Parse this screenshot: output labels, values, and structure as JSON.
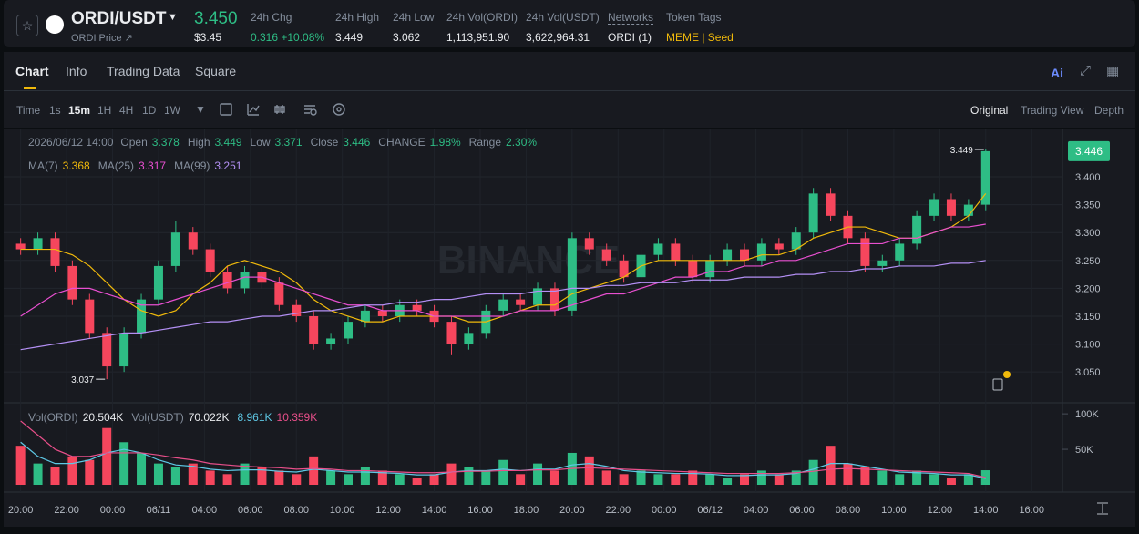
{
  "header": {
    "pair": "ORDI/USDT",
    "sub": "ORDI Price ↗",
    "price": "3.450",
    "price_usd": "$3.45",
    "stats": [
      {
        "label": "24h Chg",
        "value": "0.316 +10.08%"
      },
      {
        "label": "24h High",
        "value": "3.449"
      },
      {
        "label": "24h Low",
        "value": "3.062"
      },
      {
        "label": "24h Vol(ORDI)",
        "value": "1,113,951.90"
      },
      {
        "label": "24h Vol(USDT)",
        "value": "3,622,964.31"
      },
      {
        "label": "Networks",
        "value": "ORDI (1)"
      }
    ],
    "tags_label": "Token Tags",
    "tags": [
      "MEME",
      "Seed"
    ]
  },
  "tabs": [
    "Chart",
    "Info",
    "Trading Data",
    "Square"
  ],
  "toolbar": {
    "intervals": [
      "Time",
      "1s",
      "15m",
      "1H",
      "4H",
      "1D",
      "1W"
    ],
    "views": [
      "Original",
      "Trading View",
      "Depth"
    ],
    "ai": "Ai"
  },
  "info": {
    "date": "2026/06/12 14:00",
    "fields": [
      {
        "label": "Open",
        "value": "3.378"
      },
      {
        "label": "High",
        "value": "3.449"
      },
      {
        "label": "Low",
        "value": "3.371"
      },
      {
        "label": "Close",
        "value": "3.446"
      },
      {
        "label": "CHANGE",
        "value": "1.98%"
      },
      {
        "label": "Range",
        "value": "2.30%"
      }
    ]
  },
  "chart_data": {
    "type": "candlestick",
    "watermark": "BINANCE",
    "xlim": [
      -0.7,
      45.3
    ],
    "xticks": [
      {
        "value": 0,
        "label": "20:00"
      },
      {
        "value": 2,
        "label": "22:00"
      },
      {
        "value": 4,
        "label": "00:00"
      },
      {
        "value": 6,
        "label": "06/11"
      },
      {
        "value": 8,
        "label": "04:00"
      },
      {
        "value": 10,
        "label": "06:00"
      },
      {
        "value": 12,
        "label": "08:00"
      },
      {
        "value": 14,
        "label": "10:00"
      },
      {
        "value": 16,
        "label": "12:00"
      },
      {
        "value": 18,
        "label": "14:00"
      },
      {
        "value": 20,
        "label": "16:00"
      },
      {
        "value": 22,
        "label": "18:00"
      },
      {
        "value": 24,
        "label": "20:00"
      },
      {
        "value": 26,
        "label": "22:00"
      },
      {
        "value": 28,
        "label": "00:00"
      },
      {
        "value": 30,
        "label": "06/12"
      },
      {
        "value": 32,
        "label": "04:00"
      },
      {
        "value": 34,
        "label": "06:00"
      },
      {
        "value": 36,
        "label": "08:00"
      },
      {
        "value": 38,
        "label": "10:00"
      },
      {
        "value": 40,
        "label": "12:00"
      },
      {
        "value": 42,
        "label": "14:00"
      },
      {
        "value": 44,
        "label": "16:00"
      }
    ],
    "ylim": [
      2.998,
      3.485
    ],
    "yticks": [
      {
        "value": 3.05,
        "label": "3.050"
      },
      {
        "value": 3.1,
        "label": "3.100"
      },
      {
        "value": 3.15,
        "label": "3.150"
      },
      {
        "value": 3.2,
        "label": "3.200"
      },
      {
        "value": 3.25,
        "label": "3.250"
      },
      {
        "value": 3.3,
        "label": "3.300"
      },
      {
        "value": 3.35,
        "label": "3.350"
      },
      {
        "value": 3.4,
        "label": "3.400"
      }
    ],
    "up_color": "#2ebd85",
    "down_color": "#f6465d",
    "x": [
      0,
      0.75,
      1.5,
      2.25,
      3,
      3.75,
      4.5,
      5.25,
      6,
      6.75,
      7.5,
      8.25,
      9,
      9.75,
      10.5,
      11.25,
      12,
      12.75,
      13.5,
      14.25,
      15,
      15.75,
      16.5,
      17.25,
      18,
      18.75,
      19.5,
      20.25,
      21,
      21.75,
      22.5,
      23.25,
      24,
      24.75,
      25.5,
      26.25,
      27,
      27.75,
      28.5,
      29.25,
      30,
      30.75,
      31.5,
      32.25,
      33,
      33.75,
      34.5,
      35.25,
      36,
      36.75,
      37.5,
      38.25,
      39,
      39.75,
      40.5,
      41.25,
      42
    ],
    "open": [
      3.28,
      3.27,
      3.29,
      3.24,
      3.18,
      3.12,
      3.06,
      3.12,
      3.18,
      3.24,
      3.3,
      3.27,
      3.23,
      3.2,
      3.23,
      3.21,
      3.17,
      3.15,
      3.1,
      3.11,
      3.14,
      3.16,
      3.15,
      3.17,
      3.16,
      3.14,
      3.1,
      3.12,
      3.16,
      3.18,
      3.17,
      3.2,
      3.16,
      3.29,
      3.27,
      3.25,
      3.22,
      3.26,
      3.28,
      3.25,
      3.22,
      3.25,
      3.27,
      3.25,
      3.28,
      3.27,
      3.3,
      3.37,
      3.33,
      3.29,
      3.24,
      3.25,
      3.28,
      3.33,
      3.36,
      3.33,
      3.35
    ],
    "high": [
      3.29,
      3.3,
      3.3,
      3.25,
      3.19,
      3.13,
      3.13,
      3.19,
      3.25,
      3.32,
      3.31,
      3.28,
      3.24,
      3.24,
      3.24,
      3.22,
      3.18,
      3.16,
      3.12,
      3.15,
      3.17,
      3.17,
      3.18,
      3.18,
      3.17,
      3.15,
      3.13,
      3.17,
      3.19,
      3.19,
      3.21,
      3.21,
      3.3,
      3.3,
      3.28,
      3.26,
      3.27,
      3.29,
      3.29,
      3.26,
      3.26,
      3.28,
      3.28,
      3.29,
      3.29,
      3.31,
      3.38,
      3.38,
      3.34,
      3.3,
      3.26,
      3.29,
      3.34,
      3.37,
      3.37,
      3.36,
      3.449
    ],
    "low": [
      3.26,
      3.26,
      3.23,
      3.17,
      3.11,
      3.037,
      3.05,
      3.11,
      3.17,
      3.23,
      3.26,
      3.22,
      3.19,
      3.19,
      3.2,
      3.16,
      3.14,
      3.09,
      3.09,
      3.1,
      3.13,
      3.14,
      3.14,
      3.15,
      3.13,
      3.08,
      3.09,
      3.11,
      3.15,
      3.16,
      3.16,
      3.15,
      3.15,
      3.26,
      3.24,
      3.21,
      3.21,
      3.25,
      3.24,
      3.21,
      3.21,
      3.24,
      3.24,
      3.24,
      3.26,
      3.26,
      3.29,
      3.32,
      3.28,
      3.23,
      3.23,
      3.24,
      3.27,
      3.32,
      3.32,
      3.32,
      3.34
    ],
    "close": [
      3.27,
      3.29,
      3.24,
      3.18,
      3.12,
      3.06,
      3.12,
      3.18,
      3.24,
      3.3,
      3.27,
      3.23,
      3.2,
      3.23,
      3.21,
      3.17,
      3.15,
      3.1,
      3.11,
      3.14,
      3.16,
      3.15,
      3.17,
      3.16,
      3.14,
      3.1,
      3.12,
      3.16,
      3.18,
      3.17,
      3.2,
      3.16,
      3.29,
      3.27,
      3.25,
      3.22,
      3.26,
      3.28,
      3.25,
      3.22,
      3.25,
      3.27,
      3.25,
      3.28,
      3.27,
      3.3,
      3.37,
      3.33,
      3.29,
      3.24,
      3.25,
      3.28,
      3.33,
      3.36,
      3.33,
      3.35,
      3.446
    ],
    "series": [
      {
        "name": "MA(7)",
        "value_label": "3.368",
        "color": "#f0b90b",
        "values": [
          3.27,
          3.27,
          3.27,
          3.26,
          3.24,
          3.21,
          3.18,
          3.16,
          3.15,
          3.16,
          3.19,
          3.21,
          3.24,
          3.25,
          3.24,
          3.23,
          3.21,
          3.18,
          3.16,
          3.15,
          3.14,
          3.14,
          3.15,
          3.15,
          3.15,
          3.15,
          3.14,
          3.14,
          3.15,
          3.16,
          3.17,
          3.17,
          3.19,
          3.2,
          3.21,
          3.22,
          3.24,
          3.25,
          3.25,
          3.25,
          3.25,
          3.25,
          3.25,
          3.26,
          3.26,
          3.27,
          3.29,
          3.3,
          3.31,
          3.31,
          3.3,
          3.29,
          3.29,
          3.3,
          3.31,
          3.33,
          3.37
        ]
      },
      {
        "name": "MA(25)",
        "value_label": "3.317",
        "color": "#e84fd0",
        "values": [
          3.15,
          3.17,
          3.19,
          3.2,
          3.2,
          3.19,
          3.18,
          3.17,
          3.17,
          3.18,
          3.19,
          3.2,
          3.21,
          3.22,
          3.22,
          3.21,
          3.2,
          3.19,
          3.18,
          3.17,
          3.17,
          3.16,
          3.16,
          3.16,
          3.15,
          3.15,
          3.15,
          3.15,
          3.15,
          3.16,
          3.16,
          3.16,
          3.17,
          3.18,
          3.19,
          3.19,
          3.2,
          3.21,
          3.22,
          3.22,
          3.23,
          3.23,
          3.24,
          3.24,
          3.25,
          3.25,
          3.26,
          3.27,
          3.28,
          3.28,
          3.28,
          3.29,
          3.29,
          3.3,
          3.31,
          3.31,
          3.315
        ]
      },
      {
        "name": "MA(99)",
        "value_label": "3.251",
        "color": "#b490f5",
        "values": [
          3.09,
          3.095,
          3.1,
          3.105,
          3.11,
          3.115,
          3.12,
          3.12,
          3.125,
          3.13,
          3.135,
          3.14,
          3.14,
          3.145,
          3.15,
          3.15,
          3.155,
          3.16,
          3.16,
          3.165,
          3.17,
          3.17,
          3.175,
          3.175,
          3.18,
          3.18,
          3.185,
          3.19,
          3.19,
          3.19,
          3.195,
          3.195,
          3.2,
          3.2,
          3.205,
          3.205,
          3.21,
          3.21,
          3.21,
          3.215,
          3.215,
          3.215,
          3.22,
          3.22,
          3.22,
          3.225,
          3.225,
          3.23,
          3.23,
          3.235,
          3.235,
          3.24,
          3.24,
          3.24,
          3.245,
          3.245,
          3.25
        ]
      }
    ],
    "annotations": [
      {
        "x": 42,
        "y": 3.449,
        "text": "3.449"
      },
      {
        "x": 3.75,
        "y": 3.037,
        "text": "3.037"
      }
    ],
    "last_price": {
      "value": 3.446,
      "label": "3.446"
    },
    "volume": {
      "name": "Vol(ORDI)",
      "value_label": "20.504K",
      "usdt_name": "Vol(USDT)",
      "usdt_label": "70.022K",
      "ylim": [
        0,
        113000
      ],
      "yticks": [
        {
          "value": 50000,
          "label": "50K"
        },
        {
          "value": 100000,
          "label": "100K"
        }
      ],
      "values": [
        55000,
        30000,
        25000,
        40000,
        35000,
        80000,
        60000,
        45000,
        30000,
        25000,
        30000,
        20000,
        15000,
        30000,
        25000,
        20000,
        15000,
        40000,
        20000,
        15000,
        25000,
        20000,
        15000,
        10000,
        15000,
        30000,
        25000,
        20000,
        35000,
        15000,
        30000,
        20000,
        45000,
        40000,
        20000,
        15000,
        20000,
        15000,
        15000,
        20000,
        15000,
        10000,
        15000,
        20000,
        15000,
        20000,
        35000,
        55000,
        30000,
        25000,
        20000,
        15000,
        20000,
        15000,
        10000,
        15000,
        20504
      ],
      "series": [
        {
          "value_label": "8.961K",
          "color": "#5ec8e5",
          "values": [
            60000,
            40000,
            30000,
            30000,
            35000,
            45000,
            50000,
            45000,
            35000,
            28000,
            26000,
            22000,
            20000,
            21000,
            21000,
            19000,
            18000,
            22000,
            20000,
            18000,
            18000,
            17000,
            16000,
            14000,
            14000,
            18000,
            20000,
            20000,
            22000,
            20000,
            22000,
            22000,
            28000,
            30000,
            26000,
            20000,
            18000,
            17000,
            16000,
            16000,
            15000,
            13000,
            13000,
            14000,
            14000,
            16000,
            22000,
            30000,
            30000,
            26000,
            22000,
            18000,
            17000,
            16000,
            14000,
            14000,
            8961
          ]
        },
        {
          "value_label": "10.359K",
          "color": "#e84f8a",
          "values": [
            90000,
            70000,
            50000,
            40000,
            40000,
            45000,
            45000,
            45000,
            42000,
            38000,
            35000,
            30000,
            28000,
            26000,
            25000,
            24000,
            22000,
            23000,
            22000,
            20000,
            20000,
            19000,
            18000,
            17000,
            17000,
            18000,
            19000,
            19000,
            20000,
            20000,
            21000,
            21000,
            23000,
            24000,
            23000,
            22000,
            21000,
            20000,
            19000,
            18000,
            17000,
            16000,
            16000,
            16000,
            16000,
            17000,
            19000,
            22000,
            23000,
            22000,
            21000,
            20000,
            19000,
            18000,
            17000,
            16000,
            10359
          ]
        }
      ]
    }
  }
}
